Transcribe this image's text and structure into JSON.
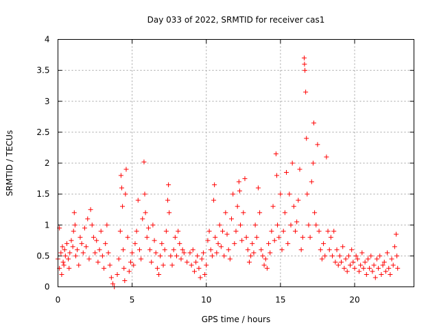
{
  "chart_data": {
    "type": "scatter",
    "title": "Day 033 of 2022, SRMTID for receiver cas1",
    "xlabel": "GPS time / hours",
    "ylabel": "SRMTID / TECUs",
    "xlim": [
      0,
      24
    ],
    "ylim": [
      0,
      4
    ],
    "xticks": [
      0,
      5,
      10,
      15,
      20
    ],
    "xtick_labels": [
      "0",
      "5",
      "10",
      "15",
      "20"
    ],
    "yticks": [
      0,
      0.5,
      1,
      1.5,
      2,
      2.5,
      3,
      3.5,
      4
    ],
    "ytick_labels": [
      "0",
      "0.5",
      "1",
      "1.5",
      "2",
      "2.5",
      "3",
      "3.5",
      "4"
    ],
    "grid": true,
    "marker": "plus",
    "color": "#ff0000",
    "series": [
      {
        "name": "SRMTID",
        "points": [
          [
            0.0,
            0.45
          ],
          [
            0.1,
            0.95
          ],
          [
            0.1,
            0.3
          ],
          [
            0.2,
            0.55
          ],
          [
            0.25,
            0.2
          ],
          [
            0.3,
            0.65
          ],
          [
            0.35,
            0.4
          ],
          [
            0.4,
            0.35
          ],
          [
            0.45,
            0.6
          ],
          [
            0.5,
            0.5
          ],
          [
            0.6,
            0.7
          ],
          [
            0.7,
            0.45
          ],
          [
            0.75,
            0.3
          ],
          [
            0.8,
            0.55
          ],
          [
            0.9,
            0.75
          ],
          [
            1.0,
            0.65
          ],
          [
            1.05,
            0.9
          ],
          [
            1.1,
            1.2
          ],
          [
            1.15,
            1.0
          ],
          [
            1.2,
            0.5
          ],
          [
            1.3,
            0.6
          ],
          [
            1.4,
            0.35
          ],
          [
            1.5,
            0.8
          ],
          [
            1.6,
            0.7
          ],
          [
            1.7,
            0.55
          ],
          [
            1.8,
            0.95
          ],
          [
            1.9,
            0.65
          ],
          [
            2.0,
            1.1
          ],
          [
            2.1,
            0.45
          ],
          [
            2.2,
            1.25
          ],
          [
            2.3,
            1.0
          ],
          [
            2.4,
            0.8
          ],
          [
            2.5,
            0.55
          ],
          [
            2.6,
            0.75
          ],
          [
            2.7,
            0.4
          ],
          [
            2.8,
            0.6
          ],
          [
            2.9,
            0.9
          ],
          [
            3.0,
            0.5
          ],
          [
            3.1,
            0.3
          ],
          [
            3.2,
            0.7
          ],
          [
            3.3,
            1.0
          ],
          [
            3.4,
            0.55
          ],
          [
            3.5,
            0.35
          ],
          [
            3.6,
            0.15
          ],
          [
            3.7,
            0.05
          ],
          [
            3.8,
            0.0
          ],
          [
            4.0,
            0.2
          ],
          [
            4.1,
            0.45
          ],
          [
            4.2,
            0.9
          ],
          [
            4.25,
            1.8
          ],
          [
            4.3,
            1.6
          ],
          [
            4.35,
            1.3
          ],
          [
            4.4,
            0.6
          ],
          [
            4.45,
            0.3
          ],
          [
            4.5,
            0.1
          ],
          [
            4.55,
            1.5
          ],
          [
            4.6,
            1.9
          ],
          [
            4.7,
            0.8
          ],
          [
            4.8,
            0.25
          ],
          [
            4.9,
            0.4
          ],
          [
            5.0,
            0.55
          ],
          [
            5.1,
            0.35
          ],
          [
            5.2,
            0.7
          ],
          [
            5.3,
            0.9
          ],
          [
            5.4,
            1.4
          ],
          [
            5.5,
            0.6
          ],
          [
            5.6,
            0.45
          ],
          [
            5.7,
            1.1
          ],
          [
            5.8,
            2.02
          ],
          [
            5.85,
            1.5
          ],
          [
            5.9,
            1.2
          ],
          [
            6.0,
            0.8
          ],
          [
            6.1,
            0.95
          ],
          [
            6.2,
            0.6
          ],
          [
            6.3,
            0.4
          ],
          [
            6.4,
            1.0
          ],
          [
            6.5,
            0.75
          ],
          [
            6.6,
            0.55
          ],
          [
            6.7,
            0.3
          ],
          [
            6.8,
            0.2
          ],
          [
            6.9,
            0.5
          ],
          [
            7.0,
            0.7
          ],
          [
            7.1,
            0.35
          ],
          [
            7.2,
            0.6
          ],
          [
            7.3,
            0.9
          ],
          [
            7.4,
            1.4
          ],
          [
            7.45,
            1.65
          ],
          [
            7.5,
            1.2
          ],
          [
            7.6,
            0.5
          ],
          [
            7.7,
            0.35
          ],
          [
            7.8,
            0.6
          ],
          [
            7.9,
            0.8
          ],
          [
            8.0,
            0.5
          ],
          [
            8.1,
            0.9
          ],
          [
            8.2,
            0.7
          ],
          [
            8.3,
            0.45
          ],
          [
            8.4,
            0.6
          ],
          [
            8.5,
            0.55
          ],
          [
            8.7,
            0.4
          ],
          [
            8.9,
            0.55
          ],
          [
            9.0,
            0.35
          ],
          [
            9.1,
            0.6
          ],
          [
            9.2,
            0.25
          ],
          [
            9.3,
            0.4
          ],
          [
            9.4,
            0.5
          ],
          [
            9.5,
            0.3
          ],
          [
            9.6,
            0.15
          ],
          [
            9.7,
            0.45
          ],
          [
            9.8,
            0.55
          ],
          [
            9.9,
            0.2
          ],
          [
            10.0,
            0.35
          ],
          [
            10.1,
            0.75
          ],
          [
            10.2,
            0.9
          ],
          [
            10.3,
            0.6
          ],
          [
            10.4,
            0.5
          ],
          [
            10.5,
            1.4
          ],
          [
            10.55,
            1.65
          ],
          [
            10.6,
            0.8
          ],
          [
            10.7,
            0.55
          ],
          [
            10.8,
            0.7
          ],
          [
            10.9,
            1.0
          ],
          [
            11.0,
            0.65
          ],
          [
            11.1,
            0.9
          ],
          [
            11.2,
            0.5
          ],
          [
            11.3,
            1.2
          ],
          [
            11.4,
            0.85
          ],
          [
            11.5,
            0.6
          ],
          [
            11.6,
            0.45
          ],
          [
            11.7,
            1.1
          ],
          [
            11.8,
            1.5
          ],
          [
            11.9,
            0.7
          ],
          [
            12.0,
            0.9
          ],
          [
            12.1,
            1.3
          ],
          [
            12.2,
            1.7
          ],
          [
            12.25,
            1.55
          ],
          [
            12.3,
            1.0
          ],
          [
            12.4,
            0.75
          ],
          [
            12.5,
            1.2
          ],
          [
            12.6,
            1.75
          ],
          [
            12.7,
            0.8
          ],
          [
            12.8,
            0.6
          ],
          [
            12.9,
            0.4
          ],
          [
            13.0,
            0.5
          ],
          [
            13.1,
            0.7
          ],
          [
            13.2,
            0.55
          ],
          [
            13.3,
            1.0
          ],
          [
            13.4,
            0.8
          ],
          [
            13.5,
            1.6
          ],
          [
            13.6,
            1.2
          ],
          [
            13.7,
            0.6
          ],
          [
            13.8,
            0.5
          ],
          [
            13.9,
            0.35
          ],
          [
            14.0,
            0.45
          ],
          [
            14.1,
            0.3
          ],
          [
            14.2,
            0.7
          ],
          [
            14.3,
            0.55
          ],
          [
            14.4,
            0.9
          ],
          [
            14.5,
            1.3
          ],
          [
            14.6,
            0.75
          ],
          [
            14.7,
            2.15
          ],
          [
            14.75,
            1.8
          ],
          [
            14.8,
            1.0
          ],
          [
            14.9,
            0.8
          ],
          [
            15.0,
            1.5
          ],
          [
            15.1,
            0.6
          ],
          [
            15.2,
            0.9
          ],
          [
            15.3,
            1.2
          ],
          [
            15.4,
            1.85
          ],
          [
            15.5,
            0.7
          ],
          [
            15.6,
            1.5
          ],
          [
            15.7,
            1.0
          ],
          [
            15.8,
            2.0
          ],
          [
            15.9,
            1.3
          ],
          [
            16.0,
            0.9
          ],
          [
            16.1,
            1.05
          ],
          [
            16.2,
            1.4
          ],
          [
            16.3,
            1.9
          ],
          [
            16.4,
            0.6
          ],
          [
            16.5,
            0.8
          ],
          [
            16.6,
            3.7
          ],
          [
            16.62,
            3.6
          ],
          [
            16.65,
            3.5
          ],
          [
            16.7,
            3.15
          ],
          [
            16.75,
            2.4
          ],
          [
            16.8,
            1.5
          ],
          [
            16.9,
            1.0
          ],
          [
            17.0,
            0.8
          ],
          [
            17.1,
            1.7
          ],
          [
            17.2,
            2.0
          ],
          [
            17.25,
            2.65
          ],
          [
            17.3,
            1.2
          ],
          [
            17.4,
            1.0
          ],
          [
            17.5,
            2.3
          ],
          [
            17.6,
            0.9
          ],
          [
            17.7,
            0.6
          ],
          [
            17.8,
            0.45
          ],
          [
            17.9,
            0.7
          ],
          [
            18.0,
            0.5
          ],
          [
            18.1,
            2.1
          ],
          [
            18.2,
            0.9
          ],
          [
            18.3,
            0.6
          ],
          [
            18.4,
            0.8
          ],
          [
            18.5,
            0.5
          ],
          [
            18.6,
            0.9
          ],
          [
            18.7,
            0.4
          ],
          [
            18.8,
            0.6
          ],
          [
            18.9,
            0.35
          ],
          [
            19.0,
            0.5
          ],
          [
            19.1,
            0.4
          ],
          [
            19.2,
            0.65
          ],
          [
            19.3,
            0.3
          ],
          [
            19.4,
            0.45
          ],
          [
            19.5,
            0.25
          ],
          [
            19.6,
            0.5
          ],
          [
            19.7,
            0.35
          ],
          [
            19.8,
            0.6
          ],
          [
            19.9,
            0.4
          ],
          [
            20.0,
            0.3
          ],
          [
            20.1,
            0.5
          ],
          [
            20.2,
            0.45
          ],
          [
            20.3,
            0.25
          ],
          [
            20.4,
            0.35
          ],
          [
            20.5,
            0.55
          ],
          [
            20.6,
            0.3
          ],
          [
            20.7,
            0.4
          ],
          [
            20.8,
            0.2
          ],
          [
            20.9,
            0.45
          ],
          [
            21.0,
            0.3
          ],
          [
            21.1,
            0.5
          ],
          [
            21.2,
            0.25
          ],
          [
            21.3,
            0.35
          ],
          [
            21.4,
            0.15
          ],
          [
            21.5,
            0.45
          ],
          [
            21.6,
            0.3
          ],
          [
            21.7,
            0.5
          ],
          [
            21.8,
            0.2
          ],
          [
            21.9,
            0.35
          ],
          [
            22.0,
            0.4
          ],
          [
            22.1,
            0.25
          ],
          [
            22.2,
            0.55
          ],
          [
            22.3,
            0.3
          ],
          [
            22.4,
            0.2
          ],
          [
            22.5,
            0.45
          ],
          [
            22.6,
            0.35
          ],
          [
            22.7,
            0.65
          ],
          [
            22.8,
            0.85
          ],
          [
            22.85,
            0.5
          ],
          [
            22.9,
            0.3
          ]
        ]
      }
    ]
  }
}
